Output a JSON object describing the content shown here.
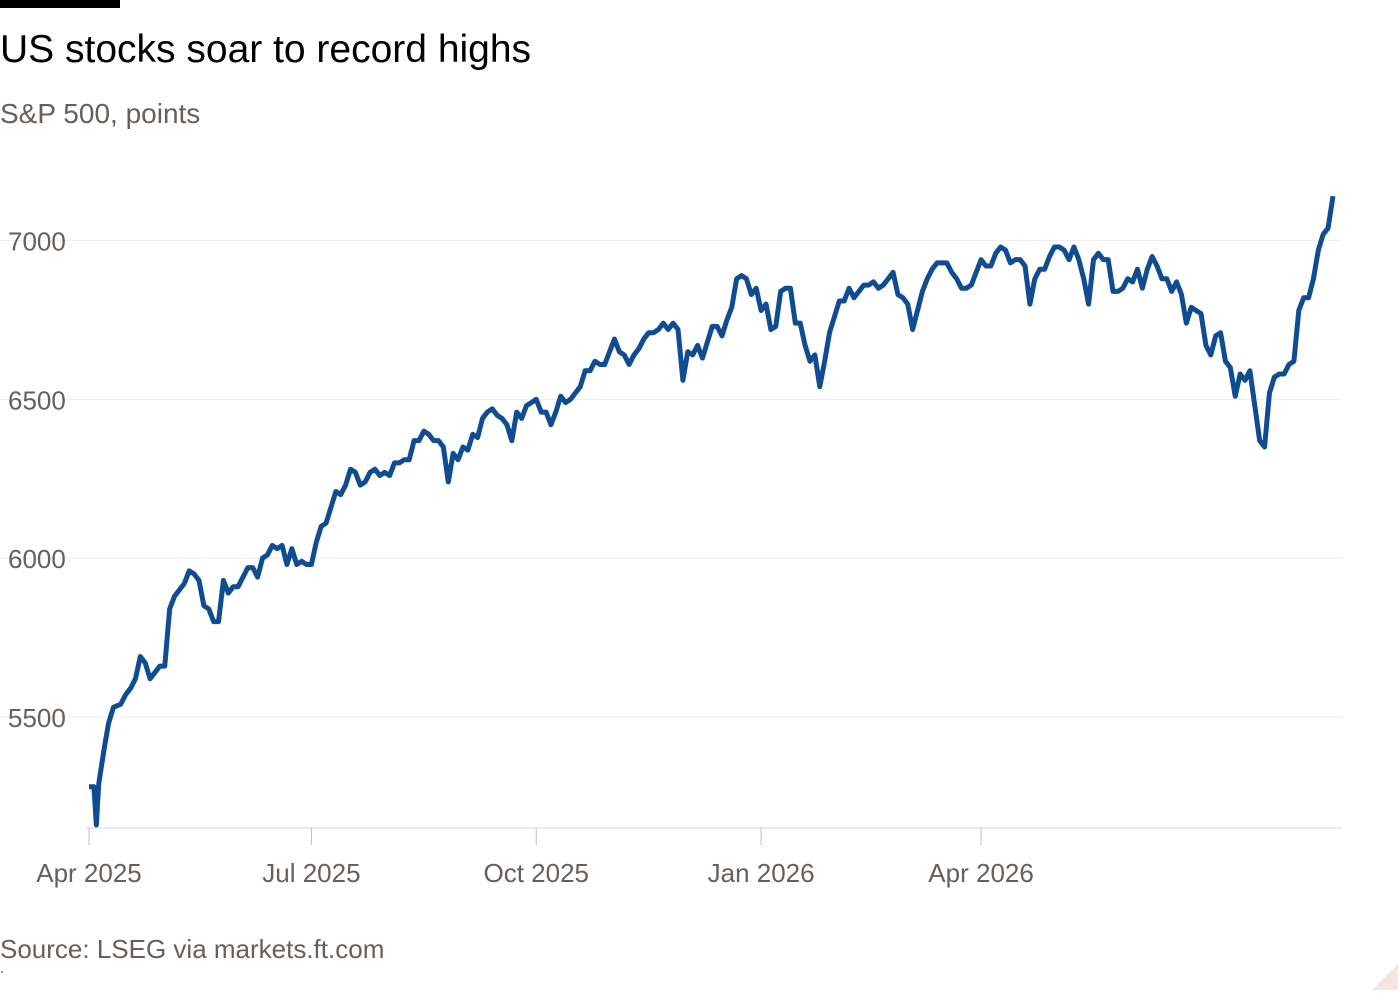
{
  "header": {
    "title": "US stocks soar to record highs",
    "subtitle": "S&P 500, points"
  },
  "footer": {
    "source": "Source: LSEG via markets.ft.com"
  },
  "colors": {
    "line": "#0f4c92",
    "text": "#000000",
    "muted": "#66605c",
    "grid": "#eeeeee"
  },
  "chart_data": {
    "type": "line",
    "title": "US stocks soar to record highs",
    "subtitle": "S&P 500, points",
    "xlabel": "",
    "ylabel": "points",
    "ylim": [
      5150,
      7150
    ],
    "yticks": [
      5500,
      6000,
      6500,
      7000
    ],
    "xticks": [
      {
        "label": "Apr 2025",
        "day": 0
      },
      {
        "label": "Jul 2025",
        "day": 91
      },
      {
        "label": "Oct 2025",
        "day": 183
      },
      {
        "label": "Jan 2026",
        "day": 275
      },
      {
        "label": "Apr 2026",
        "day": 365
      }
    ],
    "grid": true,
    "legend": "none",
    "series": [
      {
        "name": "S&P 500",
        "points": [
          [
            0,
            5280
          ],
          [
            2,
            5280
          ],
          [
            3,
            5160
          ],
          [
            4,
            5290
          ],
          [
            6,
            5390
          ],
          [
            8,
            5480
          ],
          [
            10,
            5530
          ],
          [
            13,
            5540
          ],
          [
            15,
            5570
          ],
          [
            17,
            5590
          ],
          [
            19,
            5620
          ],
          [
            21,
            5690
          ],
          [
            23,
            5670
          ],
          [
            25,
            5620
          ],
          [
            27,
            5640
          ],
          [
            29,
            5660
          ],
          [
            31,
            5660
          ],
          [
            33,
            5840
          ],
          [
            35,
            5880
          ],
          [
            37,
            5900
          ],
          [
            39,
            5920
          ],
          [
            41,
            5960
          ],
          [
            43,
            5950
          ],
          [
            45,
            5930
          ],
          [
            47,
            5850
          ],
          [
            49,
            5840
          ],
          [
            51,
            5800
          ],
          [
            53,
            5800
          ],
          [
            55,
            5930
          ],
          [
            57,
            5890
          ],
          [
            59,
            5910
          ],
          [
            61,
            5910
          ],
          [
            63,
            5940
          ],
          [
            65,
            5970
          ],
          [
            67,
            5970
          ],
          [
            69,
            5940
          ],
          [
            71,
            6000
          ],
          [
            73,
            6010
          ],
          [
            75,
            6040
          ],
          [
            77,
            6030
          ],
          [
            79,
            6040
          ],
          [
            81,
            5980
          ],
          [
            83,
            6030
          ],
          [
            85,
            5980
          ],
          [
            87,
            5990
          ],
          [
            89,
            5980
          ],
          [
            91,
            5980
          ],
          [
            93,
            6050
          ],
          [
            95,
            6100
          ],
          [
            97,
            6110
          ],
          [
            99,
            6160
          ],
          [
            101,
            6210
          ],
          [
            103,
            6200
          ],
          [
            105,
            6230
          ],
          [
            107,
            6280
          ],
          [
            109,
            6270
          ],
          [
            111,
            6230
          ],
          [
            113,
            6240
          ],
          [
            115,
            6270
          ],
          [
            117,
            6280
          ],
          [
            119,
            6260
          ],
          [
            121,
            6270
          ],
          [
            123,
            6260
          ],
          [
            125,
            6300
          ],
          [
            127,
            6300
          ],
          [
            129,
            6310
          ],
          [
            131,
            6310
          ],
          [
            133,
            6370
          ],
          [
            135,
            6370
          ],
          [
            137,
            6400
          ],
          [
            139,
            6390
          ],
          [
            141,
            6370
          ],
          [
            143,
            6370
          ],
          [
            145,
            6350
          ],
          [
            147,
            6240
          ],
          [
            149,
            6330
          ],
          [
            151,
            6310
          ],
          [
            153,
            6350
          ],
          [
            155,
            6340
          ],
          [
            157,
            6390
          ],
          [
            159,
            6380
          ],
          [
            161,
            6440
          ],
          [
            163,
            6460
          ],
          [
            165,
            6470
          ],
          [
            167,
            6450
          ],
          [
            169,
            6440
          ],
          [
            171,
            6420
          ],
          [
            173,
            6370
          ],
          [
            175,
            6460
          ],
          [
            177,
            6440
          ],
          [
            179,
            6480
          ],
          [
            181,
            6490
          ],
          [
            183,
            6500
          ],
          [
            185,
            6460
          ],
          [
            187,
            6460
          ],
          [
            189,
            6420
          ],
          [
            191,
            6460
          ],
          [
            193,
            6510
          ],
          [
            195,
            6490
          ],
          [
            197,
            6500
          ],
          [
            199,
            6520
          ],
          [
            201,
            6540
          ],
          [
            203,
            6590
          ],
          [
            205,
            6590
          ],
          [
            207,
            6620
          ],
          [
            209,
            6610
          ],
          [
            211,
            6610
          ],
          [
            213,
            6650
          ],
          [
            215,
            6690
          ],
          [
            217,
            6650
          ],
          [
            219,
            6640
          ],
          [
            221,
            6610
          ],
          [
            223,
            6640
          ],
          [
            225,
            6660
          ],
          [
            227,
            6690
          ],
          [
            229,
            6710
          ],
          [
            231,
            6710
          ],
          [
            233,
            6720
          ],
          [
            235,
            6740
          ],
          [
            237,
            6720
          ],
          [
            239,
            6740
          ],
          [
            241,
            6720
          ],
          [
            243,
            6560
          ],
          [
            245,
            6650
          ],
          [
            247,
            6640
          ],
          [
            249,
            6670
          ],
          [
            251,
            6630
          ],
          [
            253,
            6680
          ],
          [
            255,
            6730
          ],
          [
            257,
            6730
          ],
          [
            259,
            6700
          ],
          [
            261,
            6750
          ],
          [
            263,
            6790
          ],
          [
            265,
            6880
          ],
          [
            267,
            6890
          ],
          [
            269,
            6880
          ],
          [
            271,
            6830
          ],
          [
            273,
            6850
          ],
          [
            275,
            6780
          ],
          [
            277,
            6800
          ],
          [
            279,
            6720
          ],
          [
            281,
            6730
          ],
          [
            283,
            6840
          ],
          [
            285,
            6850
          ],
          [
            287,
            6850
          ],
          [
            289,
            6740
          ],
          [
            291,
            6740
          ],
          [
            293,
            6670
          ],
          [
            295,
            6620
          ],
          [
            297,
            6640
          ],
          [
            299,
            6540
          ],
          [
            301,
            6620
          ],
          [
            303,
            6710
          ],
          [
            305,
            6760
          ],
          [
            307,
            6810
          ],
          [
            309,
            6810
          ],
          [
            311,
            6850
          ],
          [
            313,
            6820
          ],
          [
            315,
            6840
          ],
          [
            317,
            6860
          ],
          [
            319,
            6860
          ],
          [
            321,
            6870
          ],
          [
            323,
            6850
          ],
          [
            325,
            6860
          ],
          [
            327,
            6880
          ],
          [
            329,
            6900
          ],
          [
            331,
            6830
          ],
          [
            333,
            6820
          ],
          [
            335,
            6800
          ],
          [
            337,
            6720
          ],
          [
            339,
            6780
          ],
          [
            341,
            6840
          ],
          [
            343,
            6880
          ],
          [
            345,
            6910
          ],
          [
            347,
            6930
          ],
          [
            349,
            6930
          ],
          [
            351,
            6930
          ],
          [
            353,
            6900
          ],
          [
            355,
            6880
          ],
          [
            357,
            6850
          ],
          [
            359,
            6850
          ],
          [
            361,
            6860
          ],
          [
            363,
            6900
          ],
          [
            365,
            6940
          ],
          [
            367,
            6920
          ],
          [
            369,
            6920
          ],
          [
            371,
            6960
          ],
          [
            373,
            6980
          ],
          [
            375,
            6970
          ],
          [
            377,
            6930
          ],
          [
            379,
            6940
          ],
          [
            381,
            6940
          ],
          [
            383,
            6920
          ],
          [
            385,
            6800
          ],
          [
            387,
            6880
          ],
          [
            389,
            6910
          ],
          [
            391,
            6910
          ],
          [
            393,
            6950
          ],
          [
            395,
            6980
          ],
          [
            397,
            6980
          ],
          [
            399,
            6970
          ],
          [
            401,
            6940
          ],
          [
            403,
            6980
          ],
          [
            405,
            6940
          ],
          [
            407,
            6880
          ],
          [
            409,
            6800
          ],
          [
            411,
            6940
          ],
          [
            413,
            6960
          ],
          [
            415,
            6940
          ],
          [
            417,
            6940
          ],
          [
            419,
            6840
          ],
          [
            421,
            6840
          ],
          [
            423,
            6850
          ],
          [
            425,
            6880
          ],
          [
            427,
            6870
          ],
          [
            429,
            6910
          ],
          [
            431,
            6850
          ],
          [
            433,
            6910
          ],
          [
            435,
            6950
          ],
          [
            437,
            6920
          ],
          [
            439,
            6880
          ],
          [
            441,
            6880
          ],
          [
            443,
            6840
          ],
          [
            445,
            6870
          ],
          [
            447,
            6830
          ],
          [
            449,
            6740
          ],
          [
            451,
            6790
          ],
          [
            453,
            6780
          ],
          [
            455,
            6770
          ],
          [
            457,
            6670
          ],
          [
            459,
            6640
          ],
          [
            461,
            6700
          ],
          [
            463,
            6710
          ],
          [
            465,
            6620
          ],
          [
            467,
            6600
          ],
          [
            469,
            6510
          ],
          [
            471,
            6580
          ],
          [
            473,
            6560
          ],
          [
            475,
            6590
          ],
          [
            477,
            6480
          ],
          [
            479,
            6370
          ],
          [
            481,
            6350
          ],
          [
            483,
            6520
          ],
          [
            485,
            6570
          ],
          [
            487,
            6580
          ],
          [
            489,
            6580
          ],
          [
            491,
            6610
          ],
          [
            493,
            6620
          ],
          [
            495,
            6780
          ],
          [
            497,
            6820
          ],
          [
            499,
            6820
          ],
          [
            501,
            6880
          ],
          [
            503,
            6970
          ],
          [
            505,
            7020
          ],
          [
            507,
            7040
          ],
          [
            509,
            7140
          ]
        ]
      }
    ]
  }
}
